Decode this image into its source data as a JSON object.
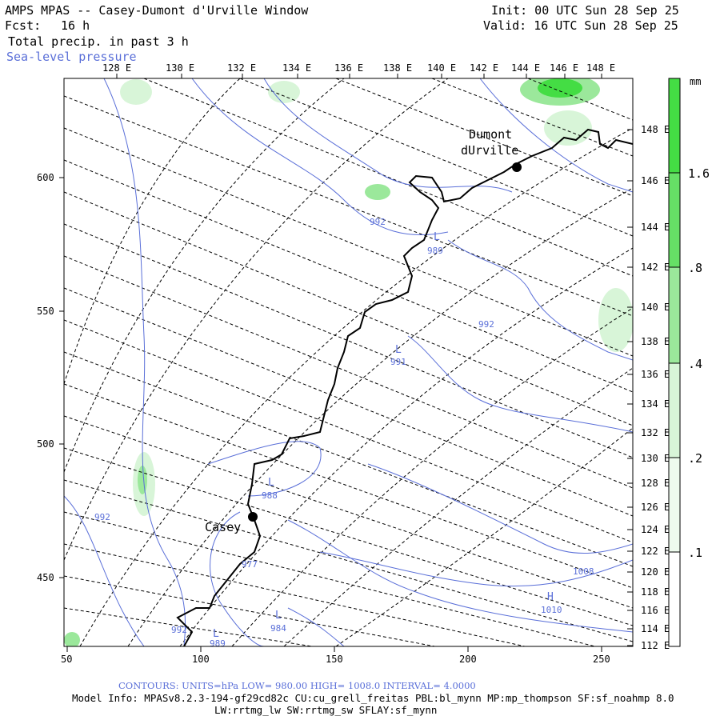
{
  "header": {
    "title": "AMPS MPAS -- Casey-Dumont d'Urville Window",
    "forecast_label": "Fcst:",
    "forecast_value": "16 h",
    "field_label": "Total precip. in past 3 h",
    "overlay_label": "Sea-level pressure",
    "init": "Init: 00 UTC Sun 28 Sep 25",
    "valid": "Valid: 16 UTC Sun 28 Sep 25"
  },
  "colors": {
    "contour": "#5a6fd8",
    "precip_light": "#d8f5d8",
    "precip_mid": "#9be89b",
    "precip_strong": "#44dd44",
    "coast": "#000000"
  },
  "axes": {
    "top_lon_ticks": [
      "128 E",
      "130 E",
      "132 E",
      "134 E",
      "136 E",
      "138 E",
      "140 E",
      "142 E",
      "144 E",
      "146 E",
      "148 E"
    ],
    "right_lon_ticks": [
      "148 E",
      "146 E",
      "144 E",
      "142 E",
      "140 E",
      "138 E",
      "136 E",
      "134 E",
      "132 E",
      "130 E",
      "128 E",
      "126 E",
      "124 E",
      "122 E",
      "120 E",
      "118 E",
      "116 E",
      "114 E",
      "112 E"
    ],
    "bottom_ticks": [
      "50",
      "100",
      "150",
      "200",
      "250"
    ],
    "left_ticks": [
      "600",
      "550",
      "500",
      "450"
    ]
  },
  "stations": [
    {
      "id": "dumont",
      "name_line1": "Dumont",
      "name_line2": "dUrville"
    },
    {
      "id": "casey",
      "name_line1": "Casey"
    }
  ],
  "pressure_labels": [
    "992",
    "989",
    "992",
    "991",
    "988",
    "992",
    "977",
    "984",
    "992",
    "989",
    "1008",
    "1010"
  ],
  "center_marks": [
    "L",
    "L",
    "L",
    "L",
    "L",
    "H"
  ],
  "legend": {
    "unit": "mm",
    "levels": [
      "1.6",
      ".8",
      ".4",
      ".2",
      ".1"
    ]
  },
  "footer": {
    "contours": "CONTOURS: UNITS=hPa LOW= 980.00 HIGH= 1008.0 INTERVAL= 4.0000",
    "model_info": "Model Info: MPASv8.2.3-194-gf29cd82c CU:cu_grell_freitas PBL:bl_mynn MP:mp_thompson SF:sf_noahmp 8.0",
    "model_info_2": "LW:rrtmg_lw SW:rrtmg_sw SFLAY:sf_mynn"
  }
}
